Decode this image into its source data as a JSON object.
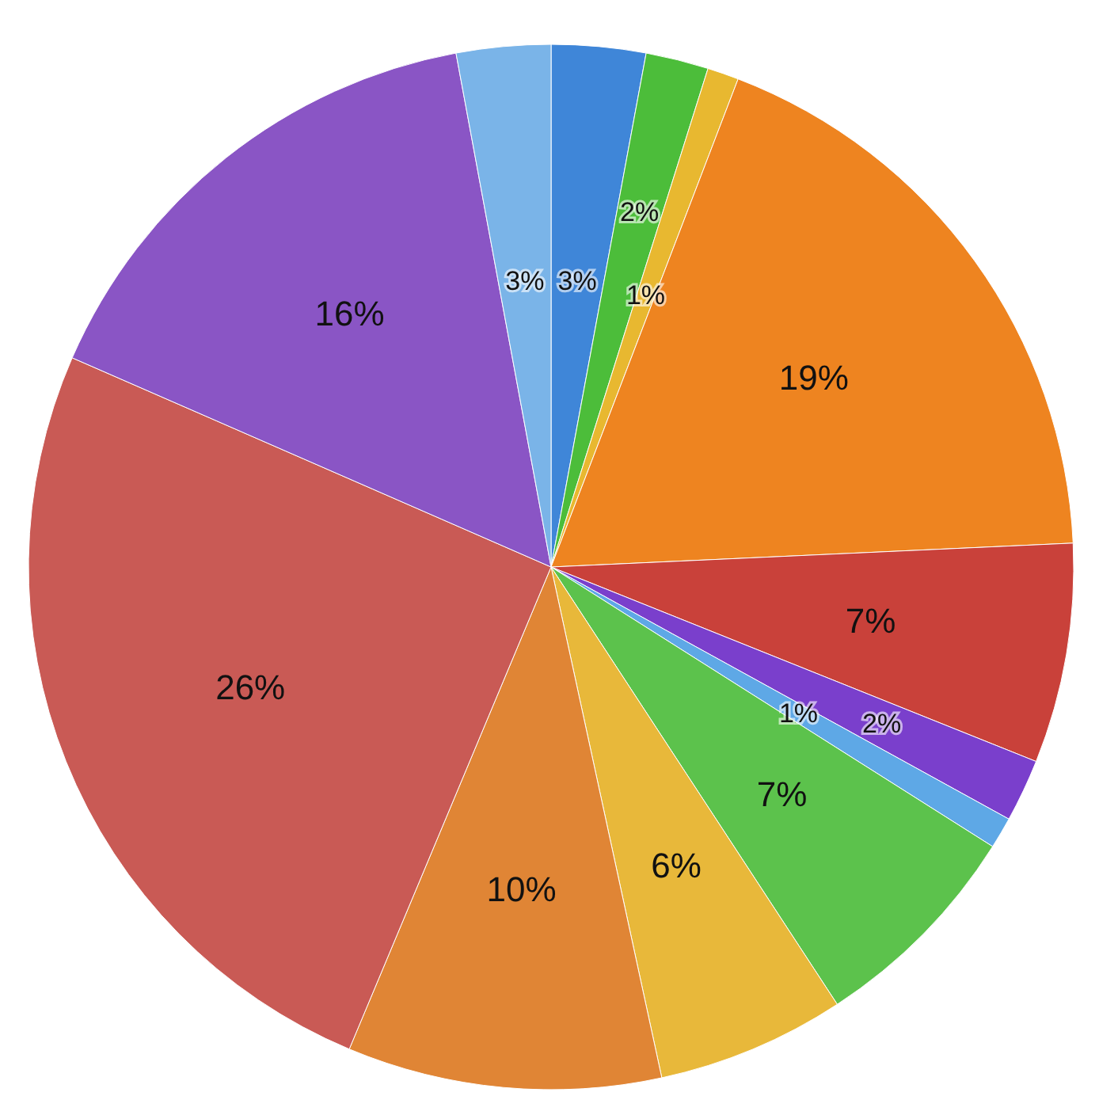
{
  "chart_data": {
    "type": "pie",
    "categories": [
      null,
      null,
      null,
      null,
      null,
      null,
      null,
      null,
      null,
      null,
      null,
      null,
      null
    ],
    "values": [
      3,
      2,
      1,
      19,
      7,
      2,
      1,
      7,
      6,
      10,
      26,
      16,
      3
    ],
    "colors": [
      "#3f86d8",
      "#4cbd3a",
      "#e8b830",
      "#ee8420",
      "#c9413a",
      "#7a3fcc",
      "#5ea8e6",
      "#5cc24c",
      "#e8b83a",
      "#e08535",
      "#c95a55",
      "#8a55c5",
      "#7ab4e8"
    ],
    "value_labels": [
      "3%",
      "2%",
      "1%",
      "19%",
      "7%",
      "2%",
      "1%",
      "7%",
      "6%",
      "10%",
      "26%",
      "16%",
      "3%"
    ]
  }
}
